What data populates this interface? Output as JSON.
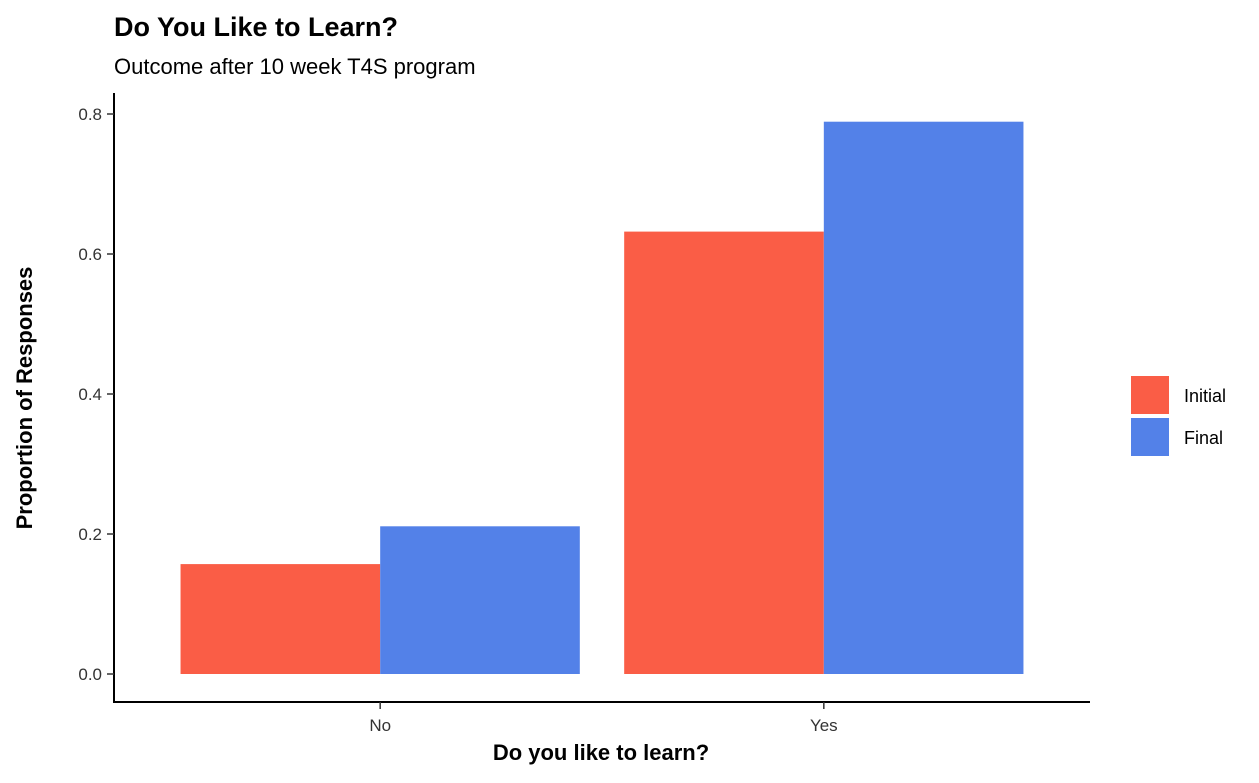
{
  "chart_data": {
    "type": "bar",
    "title": "Do You Like to Learn?",
    "subtitle": "Outcome after 10 week T4S program",
    "xlabel": "Do you like to learn?",
    "ylabel": "Proportion of Responses",
    "categories": [
      "No",
      "Yes"
    ],
    "series": [
      {
        "name": "Initial",
        "color": "#FA5D46",
        "values": [
          0.157,
          0.632
        ]
      },
      {
        "name": "Final",
        "color": "#5381E8",
        "values": [
          0.211,
          0.789
        ]
      }
    ],
    "ylim": [
      -0.04,
      0.83
    ],
    "yticks": [
      0.0,
      0.2,
      0.4,
      0.6,
      0.8
    ],
    "ytick_labels": [
      "0.0",
      "0.2",
      "0.4",
      "0.6",
      "0.8"
    ],
    "grid": false,
    "legend_position": "right"
  }
}
